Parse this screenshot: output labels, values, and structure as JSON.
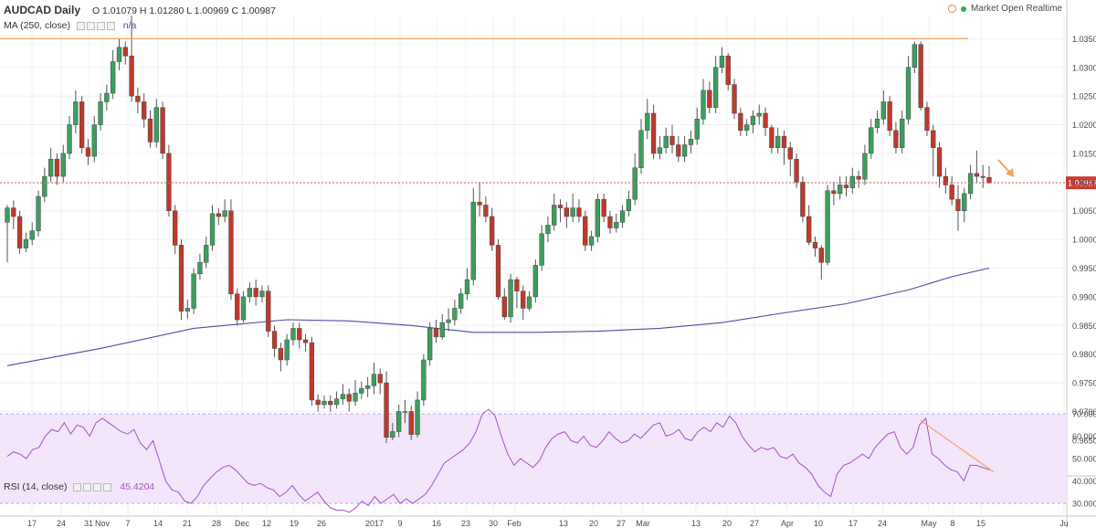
{
  "header": {
    "symbol": "AUDCAD Daily",
    "ohlc": "O 1.01079  H 1.01280  L 1.00969  C 1.00987",
    "ma_label": "MA (250, close)",
    "ma_value": "n/a",
    "rsi_label": "RSI (14, close)",
    "rsi_value": "45.4204",
    "market_status": "Market Open  Realtime"
  },
  "colors": {
    "up": "#3c9e5f",
    "down": "#c0392b",
    "ma": "#4b4baa",
    "rsi_line": "#a64fc7",
    "rsi_band": "#f3e6fb",
    "trend": "#f2a35e",
    "price_line": "#e06a5a",
    "price_badge": "#cf3b33"
  },
  "chart_data": [
    {
      "type": "candlestick",
      "y_ticks": [
        "1.03500",
        "1.03000",
        "1.02500",
        "1.02000",
        "1.01500",
        "1.01000",
        "1.00500",
        "1.00000",
        "0.99500",
        "0.99000",
        "0.98500",
        "0.98000",
        "0.97500",
        "0.97000",
        "0.96500"
      ],
      "ylim": [
        0.961,
        1.0392
      ],
      "x_ticks": [
        "17",
        "24",
        "31",
        "Nov",
        "7",
        "14",
        "21",
        "28",
        "Dec",
        "12",
        "19",
        "26",
        "2017",
        "9",
        "16",
        "23",
        "30",
        "Feb",
        "13",
        "20",
        "27",
        "Mar",
        "13",
        "20",
        "27",
        "Apr",
        "10",
        "17",
        "24",
        "May",
        "8",
        "15",
        "Ju"
      ],
      "last_price": "1.00987",
      "resistance": 1.035,
      "candles": [
        [
          1.003,
          1.0055,
          1.006,
          0.996
        ],
        [
          1.0055,
          1.004,
          1.0068,
          1.0018
        ],
        [
          1.004,
          0.9985,
          1.005,
          0.9975
        ],
        [
          0.9985,
          1.0,
          1.0012,
          0.9978
        ],
        [
          1.0,
          1.0015,
          1.003,
          0.999
        ],
        [
          1.0015,
          1.0075,
          1.0085,
          1.0005
        ],
        [
          1.0075,
          1.011,
          1.0125,
          1.0065
        ],
        [
          1.011,
          1.014,
          1.016,
          1.01
        ],
        [
          1.014,
          1.011,
          1.015,
          1.0095
        ],
        [
          1.011,
          1.015,
          1.0165,
          1.01
        ],
        [
          1.015,
          1.02,
          1.0215,
          1.014
        ],
        [
          1.02,
          1.024,
          1.026,
          1.0185
        ],
        [
          1.024,
          1.016,
          1.025,
          1.015
        ],
        [
          1.016,
          1.0145,
          1.0175,
          1.013
        ],
        [
          1.0145,
          1.02,
          1.0215,
          1.0135
        ],
        [
          1.02,
          1.024,
          1.0255,
          1.019
        ],
        [
          1.024,
          1.0255,
          1.027,
          1.0225
        ],
        [
          1.0255,
          1.031,
          1.033,
          1.0245
        ],
        [
          1.031,
          1.0335,
          1.035,
          1.0295
        ],
        [
          1.0335,
          1.032,
          1.0345,
          1.0305
        ],
        [
          1.032,
          1.025,
          1.039,
          1.024
        ],
        [
          1.025,
          1.024,
          1.0265,
          1.022
        ],
        [
          1.024,
          1.021,
          1.0255,
          1.0195
        ],
        [
          1.021,
          1.017,
          1.0225,
          1.016
        ],
        [
          1.017,
          1.023,
          1.0245,
          1.016
        ],
        [
          1.023,
          1.015,
          1.024,
          1.014
        ],
        [
          1.015,
          1.005,
          1.0165,
          1.004
        ],
        [
          1.005,
          0.999,
          1.006,
          0.9975
        ],
        [
          0.999,
          0.9875,
          1.0,
          0.986
        ],
        [
          0.9875,
          0.988,
          0.9895,
          0.9862
        ],
        [
          0.988,
          0.994,
          0.995,
          0.987
        ],
        [
          0.994,
          0.996,
          0.9975,
          0.993
        ],
        [
          0.996,
          0.999,
          1.0005,
          0.995
        ],
        [
          0.999,
          1.0045,
          1.006,
          0.998
        ],
        [
          1.0045,
          1.004,
          1.0055,
          1.0025
        ],
        [
          1.004,
          1.005,
          1.007,
          1.003
        ],
        [
          1.005,
          0.9905,
          1.007,
          0.9895
        ],
        [
          0.9905,
          0.986,
          0.9915,
          0.985
        ],
        [
          0.986,
          0.99,
          0.991,
          0.9855
        ],
        [
          0.99,
          0.9915,
          0.9925,
          0.989
        ],
        [
          0.9915,
          0.99,
          0.993,
          0.9885
        ],
        [
          0.99,
          0.991,
          0.992,
          0.989
        ],
        [
          0.991,
          0.984,
          0.992,
          0.983
        ],
        [
          0.984,
          0.981,
          0.985,
          0.9795
        ],
        [
          0.981,
          0.979,
          0.982,
          0.977
        ],
        [
          0.979,
          0.9825,
          0.9835,
          0.978
        ],
        [
          0.9825,
          0.9845,
          0.9855,
          0.9815
        ],
        [
          0.9845,
          0.9825,
          0.9855,
          0.981
        ],
        [
          0.9825,
          0.982,
          0.9835,
          0.9805
        ],
        [
          0.982,
          0.972,
          0.983,
          0.971
        ],
        [
          0.972,
          0.9712,
          0.973,
          0.97
        ],
        [
          0.9712,
          0.9718,
          0.9728,
          0.9705
        ],
        [
          0.9718,
          0.9712,
          0.9728,
          0.97
        ],
        [
          0.9712,
          0.9722,
          0.9735,
          0.9705
        ],
        [
          0.9722,
          0.973,
          0.9748,
          0.9712
        ],
        [
          0.973,
          0.9718,
          0.974,
          0.97
        ],
        [
          0.9718,
          0.9732,
          0.9755,
          0.971
        ],
        [
          0.9732,
          0.974,
          0.9752,
          0.9722
        ],
        [
          0.974,
          0.9745,
          0.976,
          0.9725
        ],
        [
          0.9745,
          0.9765,
          0.9785,
          0.973
        ],
        [
          0.9765,
          0.975,
          0.9775,
          0.973
        ],
        [
          0.975,
          0.9655,
          0.977,
          0.9645
        ],
        [
          0.9655,
          0.9665,
          0.968,
          0.965
        ],
        [
          0.9665,
          0.97,
          0.9712,
          0.9655
        ],
        [
          0.97,
          0.97,
          0.972,
          0.968
        ],
        [
          0.97,
          0.966,
          0.971,
          0.965
        ],
        [
          0.966,
          0.972,
          0.9735,
          0.9655
        ],
        [
          0.972,
          0.979,
          0.98,
          0.971
        ],
        [
          0.979,
          0.9845,
          0.9855,
          0.978
        ],
        [
          0.9845,
          0.983,
          0.986,
          0.982
        ],
        [
          0.983,
          0.9855,
          0.987,
          0.9825
        ],
        [
          0.9855,
          0.986,
          0.988,
          0.984
        ],
        [
          0.986,
          0.988,
          0.9895,
          0.985
        ],
        [
          0.988,
          0.9905,
          0.9915,
          0.987
        ],
        [
          0.9905,
          0.993,
          0.995,
          0.9895
        ],
        [
          0.993,
          1.0065,
          1.009,
          0.992
        ],
        [
          1.0065,
          1.006,
          1.01,
          1.004
        ],
        [
          1.006,
          1.004,
          1.0075,
          1.003
        ],
        [
          1.004,
          0.999,
          1.0055,
          0.998
        ],
        [
          0.999,
          0.99,
          1.0,
          0.9895
        ],
        [
          0.99,
          0.9865,
          0.9915,
          0.986
        ],
        [
          0.9865,
          0.993,
          0.994,
          0.9855
        ],
        [
          0.993,
          0.991,
          0.9935,
          0.988
        ],
        [
          0.991,
          0.988,
          0.992,
          0.986
        ],
        [
          0.988,
          0.99,
          0.991,
          0.9875
        ],
        [
          0.99,
          0.9955,
          0.9965,
          0.989
        ],
        [
          0.9955,
          1.001,
          1.0025,
          0.9945
        ],
        [
          1.001,
          1.0025,
          1.004,
          0.9995
        ],
        [
          1.0025,
          1.006,
          1.008,
          1.0015
        ],
        [
          1.006,
          1.0055,
          1.007,
          1.003
        ],
        [
          1.0055,
          1.004,
          1.0065,
          1.002
        ],
        [
          1.004,
          1.0055,
          1.008,
          1.003
        ],
        [
          1.0055,
          1.004,
          1.007,
          1.003
        ],
        [
          1.004,
          0.999,
          1.005,
          0.998
        ],
        [
          0.999,
          1.0005,
          1.0015,
          0.998
        ],
        [
          1.0005,
          1.007,
          1.008,
          0.9995
        ],
        [
          1.007,
          1.004,
          1.008,
          1.003
        ],
        [
          1.004,
          1.002,
          1.005,
          1.001
        ],
        [
          1.002,
          1.003,
          1.0045,
          1.0012
        ],
        [
          1.003,
          1.005,
          1.006,
          1.002
        ],
        [
          1.005,
          1.007,
          1.0085,
          1.004
        ],
        [
          1.007,
          1.0125,
          1.015,
          1.006
        ],
        [
          1.0125,
          1.019,
          1.021,
          1.0115
        ],
        [
          1.019,
          1.022,
          1.0245,
          1.0175
        ],
        [
          1.022,
          1.015,
          1.0235,
          1.014
        ],
        [
          1.015,
          1.016,
          1.018,
          1.014
        ],
        [
          1.016,
          1.018,
          1.0195,
          1.015
        ],
        [
          1.018,
          1.0165,
          1.02,
          1.015
        ],
        [
          1.0165,
          1.0145,
          1.018,
          1.0135
        ],
        [
          1.0145,
          1.0165,
          1.018,
          1.0135
        ],
        [
          1.0165,
          1.0175,
          1.019,
          1.015
        ],
        [
          1.0175,
          1.021,
          1.023,
          1.0165
        ],
        [
          1.021,
          1.026,
          1.028,
          1.02
        ],
        [
          1.026,
          1.023,
          1.0275,
          1.022
        ],
        [
          1.023,
          1.03,
          1.032,
          1.022
        ],
        [
          1.03,
          1.032,
          1.0335,
          1.029
        ],
        [
          1.032,
          1.027,
          1.0325,
          1.026
        ],
        [
          1.027,
          1.022,
          1.028,
          1.021
        ],
        [
          1.022,
          1.019,
          1.023,
          1.018
        ],
        [
          1.019,
          1.02,
          1.021,
          1.018
        ],
        [
          1.02,
          1.0215,
          1.0225,
          1.0185
        ],
        [
          1.0215,
          1.022,
          1.0235,
          1.02
        ],
        [
          1.022,
          1.0195,
          1.023,
          1.018
        ],
        [
          1.0195,
          1.016,
          1.02,
          1.015
        ],
        [
          1.016,
          1.018,
          1.0195,
          1.015
        ],
        [
          1.018,
          1.016,
          1.019,
          1.013
        ],
        [
          1.016,
          1.014,
          1.017,
          1.011
        ],
        [
          1.014,
          1.01,
          1.015,
          1.009
        ],
        [
          1.01,
          1.004,
          1.011,
          1.003
        ],
        [
          1.004,
          0.9995,
          1.006,
          0.999
        ],
        [
          0.9995,
          0.9985,
          1.0005,
          0.997
        ],
        [
          0.9985,
          0.996,
          0.999,
          0.993
        ],
        [
          0.996,
          1.0085,
          1.0095,
          0.9955
        ],
        [
          1.0085,
          1.008,
          1.01,
          1.006
        ],
        [
          1.008,
          1.0095,
          1.011,
          1.007
        ],
        [
          1.0095,
          1.009,
          1.011,
          1.0075
        ],
        [
          1.009,
          1.011,
          1.0125,
          1.008
        ],
        [
          1.011,
          1.0105,
          1.012,
          1.009
        ],
        [
          1.0105,
          1.015,
          1.0165,
          1.0095
        ],
        [
          1.015,
          1.0195,
          1.021,
          1.014
        ],
        [
          1.0195,
          1.021,
          1.0225,
          1.0185
        ],
        [
          1.021,
          1.024,
          1.026,
          1.02
        ],
        [
          1.024,
          1.019,
          1.025,
          1.018
        ],
        [
          1.019,
          1.016,
          1.0205,
          1.015
        ],
        [
          1.016,
          1.021,
          1.0225,
          1.015
        ],
        [
          1.021,
          1.03,
          1.032,
          1.02
        ],
        [
          1.03,
          1.034,
          1.0345,
          1.029
        ],
        [
          1.034,
          1.023,
          1.0345,
          1.0225
        ],
        [
          1.023,
          1.019,
          1.024,
          1.018
        ],
        [
          1.019,
          1.016,
          1.02,
          1.011
        ],
        [
          1.016,
          1.011,
          1.017,
          1.009
        ],
        [
          1.011,
          1.0095,
          1.0125,
          1.008
        ],
        [
          1.0095,
          1.007,
          1.011,
          1.006
        ],
        [
          1.007,
          1.005,
          1.0095,
          1.0015
        ],
        [
          1.005,
          1.008,
          1.009,
          1.003
        ],
        [
          1.008,
          1.0115,
          1.013,
          1.007
        ],
        [
          1.0115,
          1.011,
          1.0155,
          1.01
        ],
        [
          1.011,
          1.0108,
          1.013,
          1.009
        ],
        [
          1.0108,
          1.0099,
          1.0128,
          1.0097
        ]
      ],
      "ma_250": [
        [
          0,
          0.978
        ],
        [
          15,
          0.981
        ],
        [
          30,
          0.9845
        ],
        [
          45,
          0.986
        ],
        [
          55,
          0.9858
        ],
        [
          65,
          0.985
        ],
        [
          75,
          0.9838
        ],
        [
          85,
          0.9838
        ],
        [
          95,
          0.984
        ],
        [
          105,
          0.9845
        ],
        [
          115,
          0.9855
        ],
        [
          125,
          0.9872
        ],
        [
          135,
          0.9888
        ],
        [
          145,
          0.9912
        ],
        [
          152,
          0.9935
        ],
        [
          158,
          0.995
        ]
      ]
    },
    {
      "type": "line",
      "series": [
        {
          "name": "RSI (14, close)",
          "values": [
            51,
            53,
            52,
            50,
            54,
            55,
            60,
            63,
            62,
            66,
            61,
            65,
            64,
            60,
            66,
            68,
            66,
            64,
            62,
            61,
            63,
            57,
            54,
            58,
            49,
            40,
            36,
            35,
            31,
            30,
            33,
            38,
            41,
            44,
            46,
            47,
            45,
            42,
            39,
            38,
            39,
            37,
            36,
            33,
            35,
            38,
            34,
            31,
            33,
            35,
            31,
            28,
            27,
            27,
            26,
            28,
            31,
            29,
            33,
            30,
            32,
            34,
            30,
            32,
            30,
            32,
            34,
            38,
            43,
            48,
            50,
            52,
            54,
            57,
            62,
            70,
            72,
            69,
            60,
            52,
            47,
            50,
            48,
            46,
            49,
            55,
            59,
            61,
            62,
            58,
            57,
            60,
            56,
            55,
            58,
            62,
            59,
            57,
            58,
            61,
            59,
            62,
            65,
            66,
            60,
            61,
            63,
            59,
            58,
            62,
            64,
            62,
            66,
            64,
            69,
            66,
            60,
            56,
            53,
            55,
            54,
            55,
            51,
            50,
            52,
            48,
            46,
            43,
            38,
            35,
            33,
            43,
            47,
            48,
            50,
            52,
            50,
            55,
            58,
            61,
            62,
            55,
            52,
            55,
            65,
            68,
            52,
            50,
            47,
            45,
            44,
            40,
            47,
            47,
            46,
            45
          ]
        }
      ],
      "y_ticks": [
        "70.0000",
        "60.0000",
        "50.0000",
        "40.0000",
        "30.0000"
      ],
      "ylim": [
        25.5,
        75
      ],
      "band": [
        30,
        70
      ]
    }
  ]
}
